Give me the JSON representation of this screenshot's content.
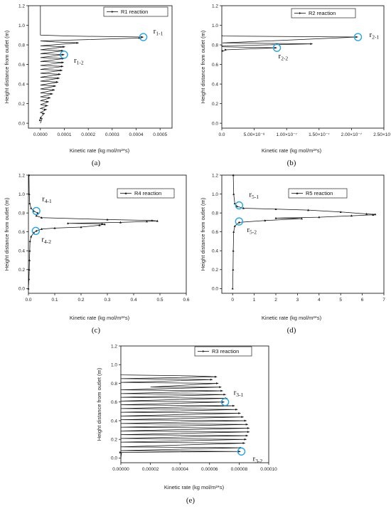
{
  "chart_data": [
    {
      "type": "line",
      "caption": "(a)",
      "legend": "R1  reaction",
      "legend_position": "top-right",
      "xlabel": "Kinetic rate (kg mol/m²*s)",
      "ylabel": "Height distance from outlet (m)",
      "xlim": [
        -5e-05,
        0.00055
      ],
      "ylim": [
        -0.05,
        1.2
      ],
      "xticks": [
        "0.0000",
        "0.0001",
        "0.0002",
        "0.0003",
        "0.0004",
        "0.0005"
      ],
      "xtick_values": [
        0,
        0.0001,
        0.0002,
        0.0003,
        0.0004,
        0.0005
      ],
      "yticks": [
        "0.0",
        "0.2",
        "0.4",
        "0.6",
        "0.8",
        "1.0",
        "1.2"
      ],
      "ytick_values": [
        0,
        0.2,
        0.4,
        0.6,
        0.8,
        1.0,
        1.2
      ],
      "marker": "arrow",
      "points": [
        [
          0,
          0
        ],
        [
          4.5e-06,
          0.03
        ],
        [
          7.5e-06,
          0.05
        ],
        [
          0,
          0.06
        ],
        [
          1.7e-05,
          0.1
        ],
        [
          0,
          0.11
        ],
        [
          2.5e-05,
          0.14
        ],
        [
          0,
          0.15
        ],
        [
          3e-05,
          0.18
        ],
        [
          0,
          0.19
        ],
        [
          3.5e-05,
          0.22
        ],
        [
          0,
          0.23
        ],
        [
          4.2e-05,
          0.26
        ],
        [
          0,
          0.27
        ],
        [
          5.2e-05,
          0.3
        ],
        [
          0,
          0.31
        ],
        [
          6e-05,
          0.34
        ],
        [
          0,
          0.35
        ],
        [
          6.5e-05,
          0.38
        ],
        [
          0,
          0.39
        ],
        [
          7.5e-05,
          0.42
        ],
        [
          0,
          0.43
        ],
        [
          8e-05,
          0.46
        ],
        [
          0,
          0.47
        ],
        [
          8.5e-05,
          0.5
        ],
        [
          0,
          0.51
        ],
        [
          9.2e-05,
          0.54
        ],
        [
          0,
          0.55
        ],
        [
          9.6e-05,
          0.58
        ],
        [
          0,
          0.59
        ],
        [
          9.8e-05,
          0.62
        ],
        [
          0,
          0.63
        ],
        [
          9.9e-05,
          0.66
        ],
        [
          0,
          0.67
        ],
        [
          0.0001,
          0.7
        ],
        [
          0,
          0.71
        ],
        [
          9.7e-05,
          0.74
        ],
        [
          0,
          0.75
        ],
        [
          0.000103,
          0.78
        ],
        [
          0,
          0.79
        ],
        [
          0.00016,
          0.82
        ],
        [
          6e-05,
          0.83
        ],
        [
          0,
          0.84
        ],
        [
          0.00042,
          0.87
        ],
        [
          0.00043,
          0.88
        ],
        [
          0.00012,
          0.89
        ],
        [
          0,
          0.9
        ],
        [
          0,
          1.2
        ]
      ],
      "annotations": [
        {
          "base": "r",
          "sub": "1-1",
          "x": 0.00043,
          "y": 0.88
        },
        {
          "base": "r",
          "sub": "1-2",
          "x": 9.85e-05,
          "y": 0.7
        }
      ]
    },
    {
      "type": "line",
      "caption": "(b)",
      "legend": "R2  reaction",
      "legend_position": "top-right",
      "xlabel": "Kinetic rate  (kg mol/m²*s)",
      "ylabel": "Height distance from outlet (m)",
      "xlim": [
        0,
        2.5e-07
      ],
      "ylim": [
        -0.05,
        1.2
      ],
      "xticks": [
        "0.0",
        "5.00×10⁻⁸",
        "1.00×10⁻⁷",
        "1.50×10⁻⁷",
        "2.00×10⁻⁷",
        "2.50×10⁻⁷"
      ],
      "xtick_values": [
        0,
        5e-08,
        1e-07,
        1.5e-07,
        2e-07,
        2.5e-07
      ],
      "yticks": [
        "0.0",
        "0.2",
        "0.4",
        "0.6",
        "0.8",
        "1.0",
        "1.2"
      ],
      "ytick_values": [
        0,
        0.2,
        0.4,
        0.6,
        0.8,
        1.0,
        1.2
      ],
      "marker": "arrow",
      "points": [
        [
          0,
          0.73
        ],
        [
          3e-09,
          0.74
        ],
        [
          8e-09,
          0.75
        ],
        [
          8.5e-08,
          0.77
        ],
        [
          2e-09,
          0.78
        ],
        [
          0,
          0.79
        ],
        [
          1.4e-07,
          0.81
        ],
        [
          1e-09,
          0.82
        ],
        [
          2.1e-07,
          0.88
        ],
        [
          1e-09,
          0.89
        ],
        [
          0,
          0.9
        ]
      ],
      "annotations": [
        {
          "base": "r",
          "sub": "2-1",
          "x": 2.1e-07,
          "y": 0.88
        },
        {
          "base": "r",
          "sub": "2-2",
          "x": 8.5e-08,
          "y": 0.77
        }
      ]
    },
    {
      "type": "line",
      "caption": "(c)",
      "legend": "R4  reaction",
      "legend_position": "top-right",
      "xlabel": "Kinetic rate  (kg mol/m²*s)",
      "ylabel": "Height distance from outlet (m)",
      "xlim": [
        0,
        0.6
      ],
      "ylim": [
        -0.05,
        1.2
      ],
      "xticks": [
        "0.0",
        "0.1",
        "0.2",
        "0.3",
        "0.4",
        "0.5",
        "0.6"
      ],
      "xtick_values": [
        0,
        0.1,
        0.2,
        0.3,
        0.4,
        0.5,
        0.6
      ],
      "yticks": [
        "0.0",
        "0.2",
        "0.4",
        "0.6",
        "0.8",
        "1.0",
        "1.2"
      ],
      "ytick_values": [
        0,
        0.2,
        0.4,
        0.6,
        0.8,
        1.0,
        1.2
      ],
      "marker": "triangle",
      "points": [
        [
          0,
          0
        ],
        [
          0.002,
          0.1
        ],
        [
          0.003,
          0.2
        ],
        [
          0.004,
          0.3
        ],
        [
          0.005,
          0.4
        ],
        [
          0.006,
          0.5
        ],
        [
          0.01,
          0.55
        ],
        [
          0.02,
          0.59
        ],
        [
          0.03,
          0.61
        ],
        [
          0.05,
          0.63
        ],
        [
          0.1,
          0.64
        ],
        [
          0.2,
          0.65
        ],
        [
          0.27,
          0.67
        ],
        [
          0.29,
          0.68
        ],
        [
          0.28,
          0.685
        ],
        [
          0.15,
          0.69
        ],
        [
          0.35,
          0.7
        ],
        [
          0.45,
          0.71
        ],
        [
          0.49,
          0.715
        ],
        [
          0.47,
          0.72
        ],
        [
          0.3,
          0.73
        ],
        [
          0.05,
          0.75
        ],
        [
          0.03,
          0.77
        ],
        [
          0.035,
          0.8
        ],
        [
          0.02,
          0.82
        ],
        [
          0.01,
          0.85
        ],
        [
          0.005,
          0.9
        ],
        [
          0.003,
          1.0
        ],
        [
          0.002,
          1.2
        ]
      ],
      "annotations": [
        {
          "base": "r",
          "sub": "4-1",
          "x": 0.03,
          "y": 0.82
        },
        {
          "base": "r",
          "sub": "4-2",
          "x": 0.028,
          "y": 0.61
        }
      ]
    },
    {
      "type": "line",
      "caption": "(d)",
      "legend": "R5  reaction",
      "legend_position": "top-right",
      "xlabel": "Kinetic rate  (kg mol/m²*s)",
      "ylabel": "Height distance from outlet (m)",
      "xlim": [
        -0.5,
        7
      ],
      "ylim": [
        -0.05,
        1.2
      ],
      "xticks": [
        "0",
        "1",
        "2",
        "3",
        "4",
        "5",
        "6",
        "7"
      ],
      "xtick_values": [
        0,
        1,
        2,
        3,
        4,
        5,
        6,
        7
      ],
      "yticks": [
        "0.0",
        "0.2",
        "0.4",
        "0.6",
        "0.8",
        "1.0",
        "1.2"
      ],
      "ytick_values": [
        0,
        0.2,
        0.4,
        0.6,
        0.8,
        1.0,
        1.2
      ],
      "marker": "triangle",
      "points": [
        [
          0,
          0
        ],
        [
          0.02,
          0.2
        ],
        [
          0.03,
          0.4
        ],
        [
          0.05,
          0.6
        ],
        [
          0.1,
          0.66
        ],
        [
          0.3,
          0.7
        ],
        [
          1.5,
          0.72
        ],
        [
          3.2,
          0.74
        ],
        [
          2,
          0.745
        ],
        [
          4,
          0.755
        ],
        [
          5.5,
          0.77
        ],
        [
          6.5,
          0.78
        ],
        [
          6.6,
          0.785
        ],
        [
          6.2,
          0.79
        ],
        [
          5,
          0.81
        ],
        [
          3.5,
          0.83
        ],
        [
          2,
          0.84
        ],
        [
          0.5,
          0.85
        ],
        [
          0.2,
          0.87
        ],
        [
          0.1,
          0.9
        ],
        [
          0.05,
          1.0
        ],
        [
          0.03,
          1.2
        ]
      ],
      "annotations": [
        {
          "base": "r",
          "sub": "5-1",
          "x": 0.3,
          "y": 0.88
        },
        {
          "base": "r",
          "sub": "5-2",
          "x": 0.3,
          "y": 0.71
        }
      ]
    },
    {
      "type": "line",
      "caption": "(e)",
      "legend": "R3  reaction",
      "legend_position": "top-right",
      "xlabel": "Kinetic rate  (kg mol/m²*s)",
      "ylabel": "Height distance from outlet (m)",
      "xlim": [
        0,
        0.0001
      ],
      "ylim": [
        -0.05,
        1.2
      ],
      "xticks": [
        "0.00000",
        "0.00002",
        "0.00004",
        "0.00006",
        "0.00008",
        "0.00010"
      ],
      "xtick_values": [
        0,
        2e-05,
        4e-05,
        6e-05,
        8e-05,
        0.0001
      ],
      "yticks": [
        "0.0",
        "0.2",
        "0.4",
        "0.6",
        "0.8",
        "1.0",
        "1.2"
      ],
      "ytick_values": [
        0,
        0.2,
        0.4,
        0.6,
        0.8,
        1.0,
        1.2
      ],
      "marker": "arrow",
      "points": [
        [
          0,
          0
        ],
        [
          5e-07,
          0.06
        ],
        [
          8.1e-05,
          0.07
        ],
        [
          0,
          0.08
        ],
        [
          8.2e-05,
          0.11
        ],
        [
          0,
          0.12
        ],
        [
          8.4e-05,
          0.16
        ],
        [
          0,
          0.17
        ],
        [
          8.5e-05,
          0.2
        ],
        [
          0,
          0.21
        ],
        [
          8.6e-05,
          0.24
        ],
        [
          0,
          0.25
        ],
        [
          8.7e-05,
          0.28
        ],
        [
          0,
          0.29
        ],
        [
          8.7e-05,
          0.32
        ],
        [
          0,
          0.33
        ],
        [
          8.6e-05,
          0.36
        ],
        [
          0,
          0.37
        ],
        [
          8.5e-05,
          0.4
        ],
        [
          0,
          0.41
        ],
        [
          8.3e-05,
          0.44
        ],
        [
          0,
          0.45
        ],
        [
          8.1e-05,
          0.48
        ],
        [
          0,
          0.49
        ],
        [
          7.9e-05,
          0.52
        ],
        [
          0,
          0.53
        ],
        [
          7.7e-05,
          0.56
        ],
        [
          0,
          0.57
        ],
        [
          7e-05,
          0.6
        ],
        [
          0,
          0.61
        ],
        [
          7.2e-05,
          0.64
        ],
        [
          0,
          0.65
        ],
        [
          7.1e-05,
          0.68
        ],
        [
          0,
          0.69
        ],
        [
          6.9e-05,
          0.72
        ],
        [
          0,
          0.73
        ],
        [
          6.8e-05,
          0.76
        ],
        [
          2e-05,
          0.76
        ],
        [
          6.6e-05,
          0.8
        ],
        [
          0,
          0.81
        ],
        [
          6.2e-05,
          0.84
        ],
        [
          0,
          0.85
        ],
        [
          6.5e-05,
          0.87
        ],
        [
          4.8e-05,
          0.88
        ],
        [
          0,
          0.89
        ],
        [
          0,
          0.9
        ]
      ],
      "annotations": [
        {
          "base": "r",
          "sub": "3-1",
          "x": 7.05e-05,
          "y": 0.6
        },
        {
          "base": "r",
          "sub": "3-2",
          "x": 8.15e-05,
          "y": 0.07
        }
      ]
    }
  ],
  "colors": {
    "line": "#111111",
    "highlight_circle": "#29a3e0",
    "axis": "#000000"
  }
}
